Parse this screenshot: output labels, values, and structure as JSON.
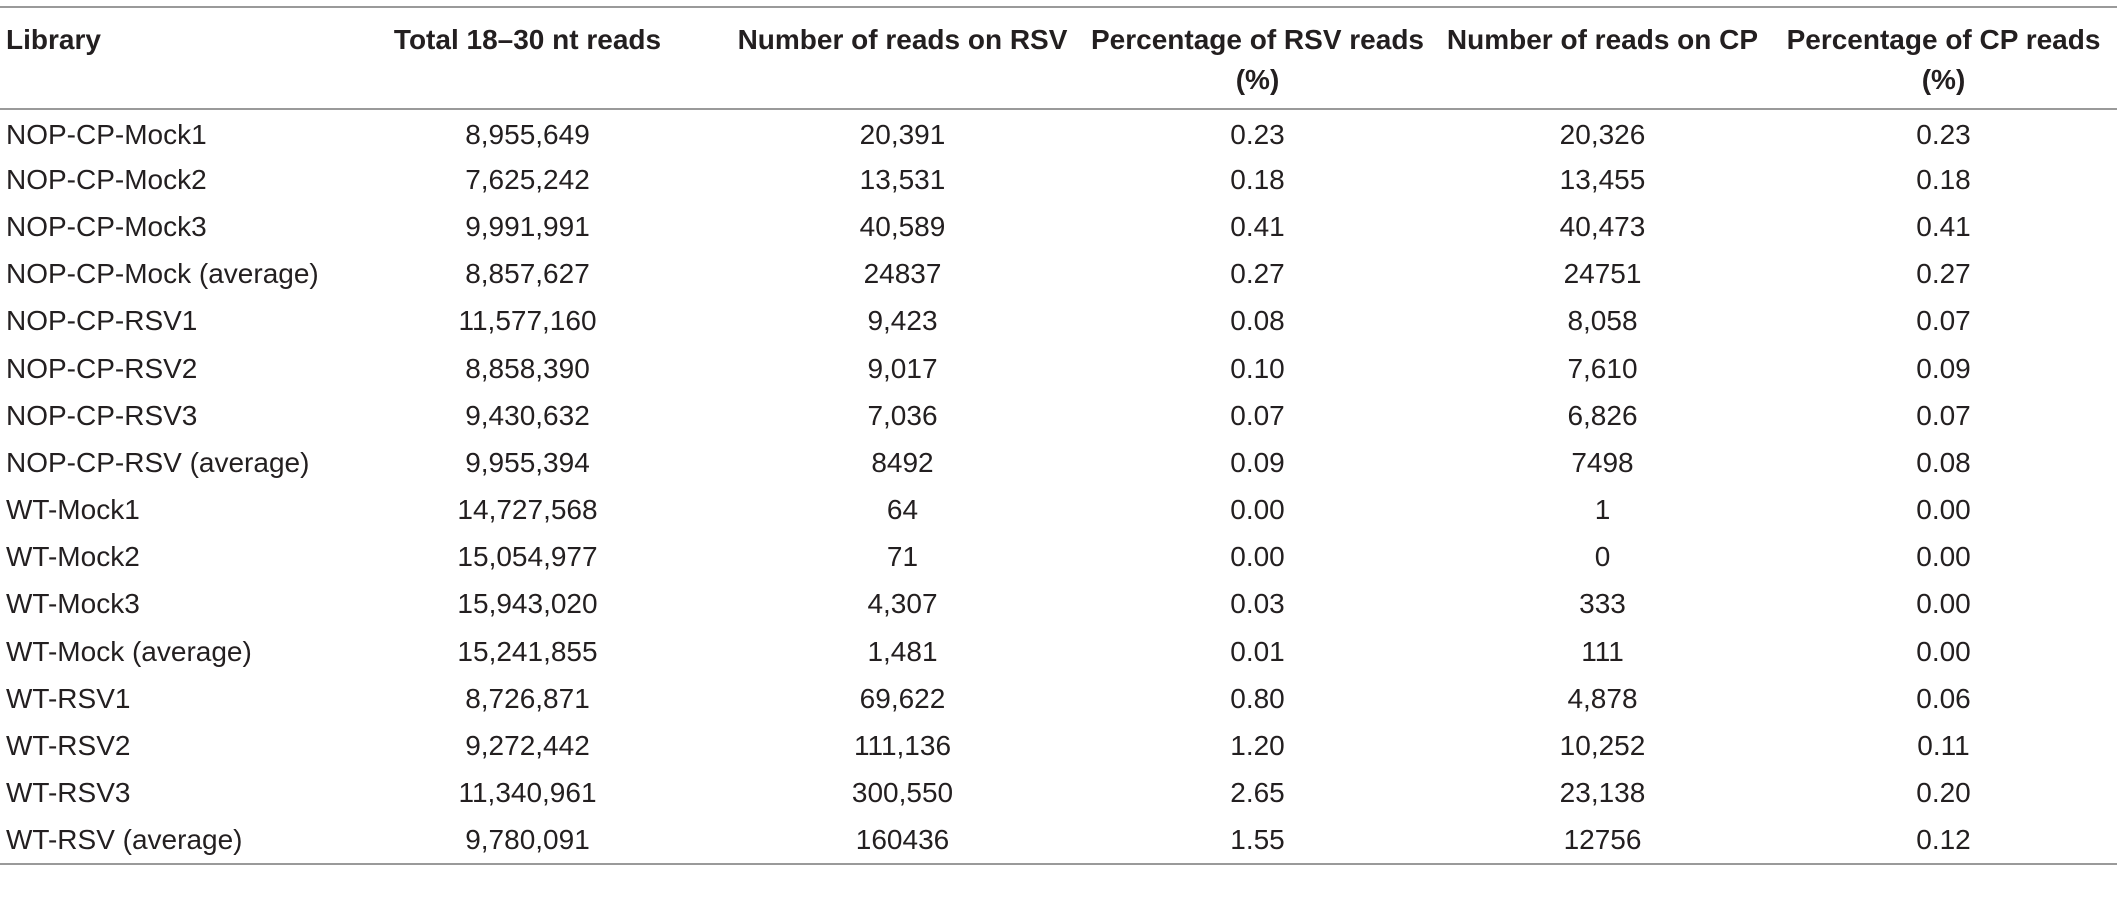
{
  "table": {
    "headers": [
      "Library",
      "Total 18–30 nt reads",
      "Number of reads on RSV",
      "Percentage of RSV reads (%)",
      "Number of reads on CP",
      "Percentage of CP reads (%)"
    ],
    "rows": [
      [
        "NOP-CP-Mock1",
        "8,955,649",
        "20,391",
        "0.23",
        "20,326",
        "0.23"
      ],
      [
        "NOP-CP-Mock2",
        "7,625,242",
        "13,531",
        "0.18",
        "13,455",
        "0.18"
      ],
      [
        "NOP-CP-Mock3",
        "9,991,991",
        "40,589",
        "0.41",
        "40,473",
        "0.41"
      ],
      [
        "NOP-CP-Mock (average)",
        "8,857,627",
        "24837",
        "0.27",
        "24751",
        "0.27"
      ],
      [
        "NOP-CP-RSV1",
        "11,577,160",
        "9,423",
        "0.08",
        "8,058",
        "0.07"
      ],
      [
        "NOP-CP-RSV2",
        "8,858,390",
        "9,017",
        "0.10",
        "7,610",
        "0.09"
      ],
      [
        "NOP-CP-RSV3",
        "9,430,632",
        "7,036",
        "0.07",
        "6,826",
        "0.07"
      ],
      [
        "NOP-CP-RSV (average)",
        "9,955,394",
        "8492",
        "0.09",
        "7498",
        "0.08"
      ],
      [
        "WT-Mock1",
        "14,727,568",
        "64",
        "0.00",
        "1",
        "0.00"
      ],
      [
        "WT-Mock2",
        "15,054,977",
        "71",
        "0.00",
        "0",
        "0.00"
      ],
      [
        "WT-Mock3",
        "15,943,020",
        "4,307",
        "0.03",
        "333",
        "0.00"
      ],
      [
        "WT-Mock (average)",
        "15,241,855",
        "1,481",
        "0.01",
        "111",
        "0.00"
      ],
      [
        "WT-RSV1",
        "8,726,871",
        "69,622",
        "0.80",
        "4,878",
        "0.06"
      ],
      [
        "WT-RSV2",
        "9,272,442",
        "111,136",
        "1.20",
        "10,252",
        "0.11"
      ],
      [
        "WT-RSV3",
        "11,340,961",
        "300,550",
        "2.65",
        "23,138",
        "0.20"
      ],
      [
        "WT-RSV (average)",
        "9,780,091",
        "160436",
        "1.55",
        "12756",
        "0.12"
      ]
    ]
  }
}
